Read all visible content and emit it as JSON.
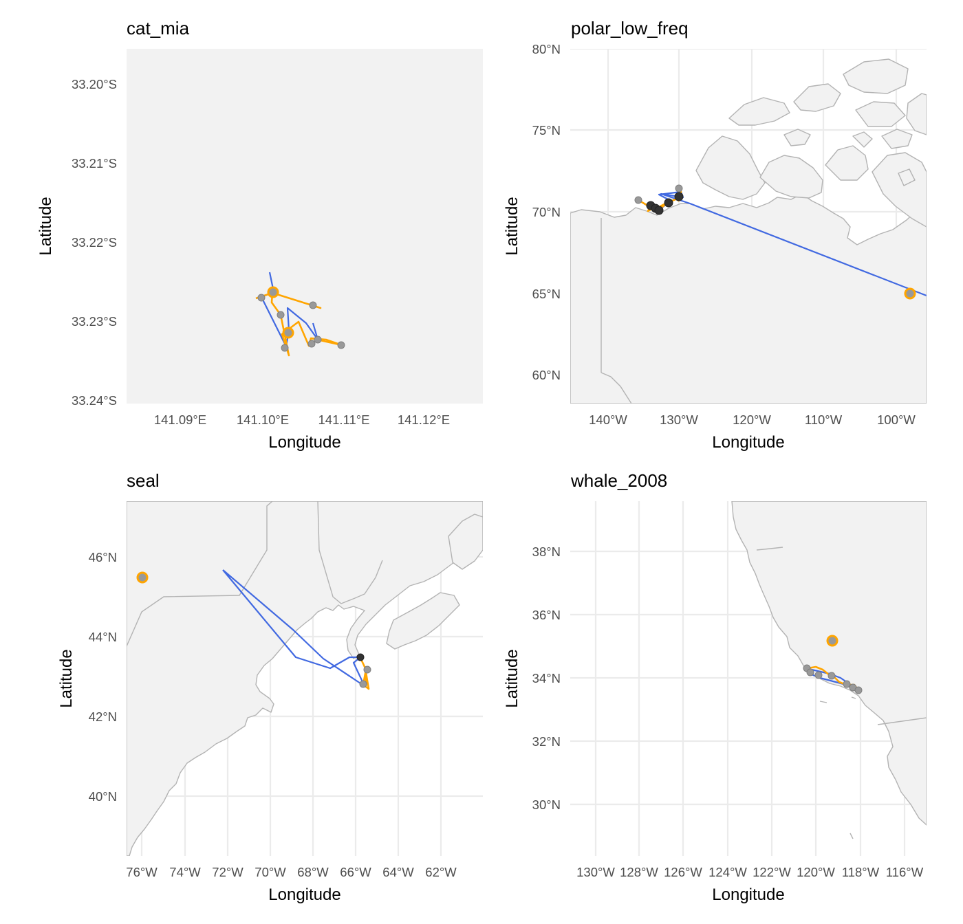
{
  "panels": [
    {
      "title": "cat_mia",
      "xlabel": "Longitude",
      "ylabel": "Latitude",
      "x_ticks": [
        "141.09°E",
        "141.10°E",
        "141.11°E",
        "141.12°E"
      ],
      "y_ticks": [
        "33.20°S",
        "33.21°S",
        "33.22°S",
        "33.23°S",
        "33.24°S"
      ]
    },
    {
      "title": "polar_low_freq",
      "xlabel": "Longitude",
      "ylabel": "Latitude",
      "x_ticks": [
        "140°W",
        "130°W",
        "120°W",
        "110°W",
        "100°W"
      ],
      "y_ticks": [
        "80°N",
        "75°N",
        "70°N",
        "65°N",
        "60°N"
      ]
    },
    {
      "title": "seal",
      "xlabel": "Longitude",
      "ylabel": "Latitude",
      "x_ticks": [
        "76°W",
        "74°W",
        "72°W",
        "70°W",
        "68°W",
        "66°W",
        "64°W",
        "62°W"
      ],
      "y_ticks": [
        "46°N",
        "44°N",
        "42°N",
        "40°N"
      ]
    },
    {
      "title": "whale_2008",
      "xlabel": "Longitude",
      "ylabel": "Latitude",
      "x_ticks": [
        "130°W",
        "128°W",
        "126°W",
        "124°W",
        "122°W",
        "120°W",
        "118°W",
        "116°W"
      ],
      "y_ticks": [
        "38°N",
        "36°N",
        "34°N",
        "32°N",
        "30°N"
      ]
    }
  ],
  "colors": {
    "track_fit": "#4169e1",
    "track_observed": "#ffa500",
    "points": "#999999",
    "land": "#f2f2f2",
    "coast": "#b3b3b3",
    "panel_bg": "#f2f2f2"
  }
}
